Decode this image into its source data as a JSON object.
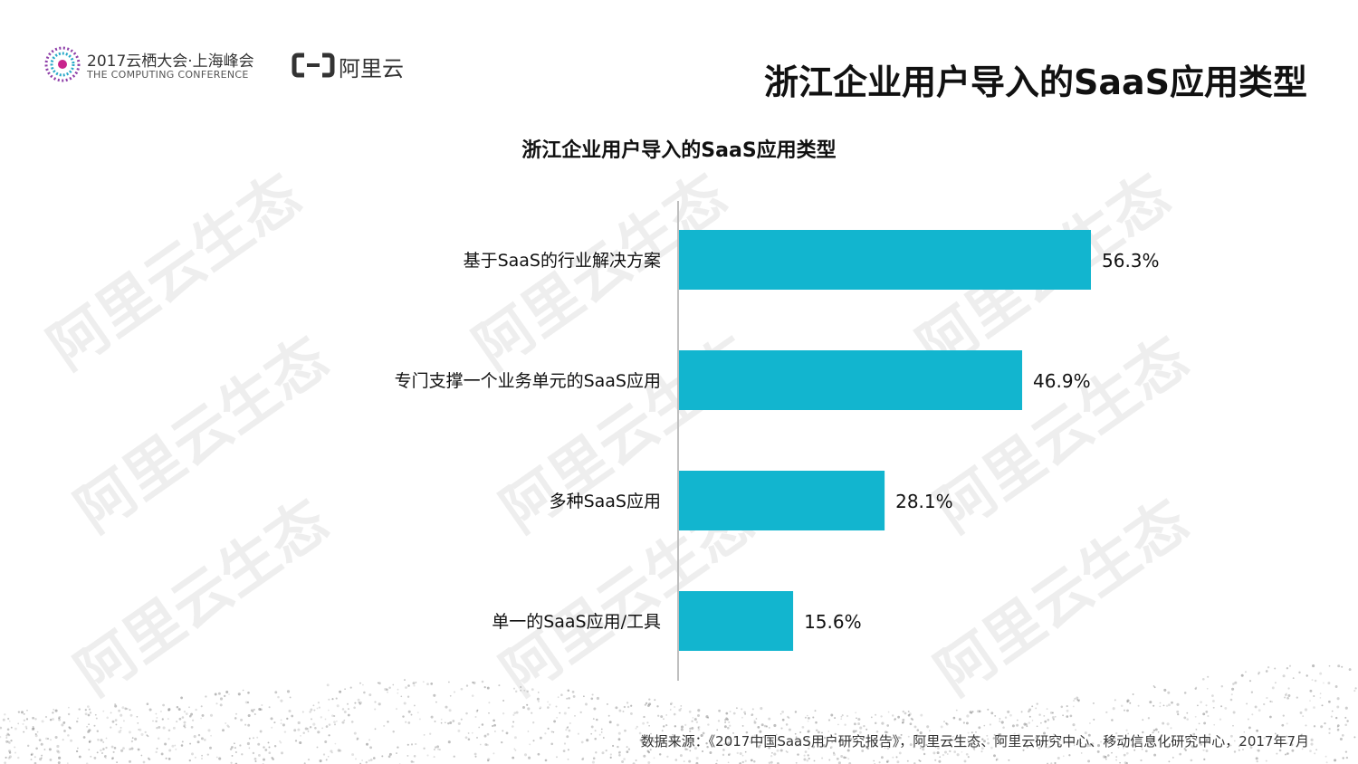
{
  "header": {
    "conference_title": "2017云栖大会·上海峰会",
    "conference_subtitle": "THE COMPUTING CONFERENCE",
    "brand_text": "阿里云",
    "slide_title": "浙江企业用户导入的SaaS应用类型"
  },
  "watermark_text": "阿里云生态",
  "footer": {
    "source": "数据来源：《2017中国SaaS用户研究报告》，阿里云生态、阿里云研究中心、移动信息化研究中心，2017年7月"
  },
  "colors": {
    "bar": "#12b5cf",
    "axis": "#bfbfbf"
  },
  "chart_data": {
    "type": "bar",
    "orientation": "horizontal",
    "title": "浙江企业用户导入的SaaS应用类型",
    "categories": [
      "基于SaaS的行业解决方案",
      "专门支撑一个业务单元的SaaS应用",
      "多种SaaS应用",
      "单一的SaaS应用/工具"
    ],
    "values": [
      56.3,
      46.9,
      28.1,
      15.6
    ],
    "value_labels": [
      "56.3%",
      "46.9%",
      "28.1%",
      "15.6%"
    ],
    "xlim": [
      0,
      100
    ],
    "grid": false,
    "legend": "none"
  }
}
